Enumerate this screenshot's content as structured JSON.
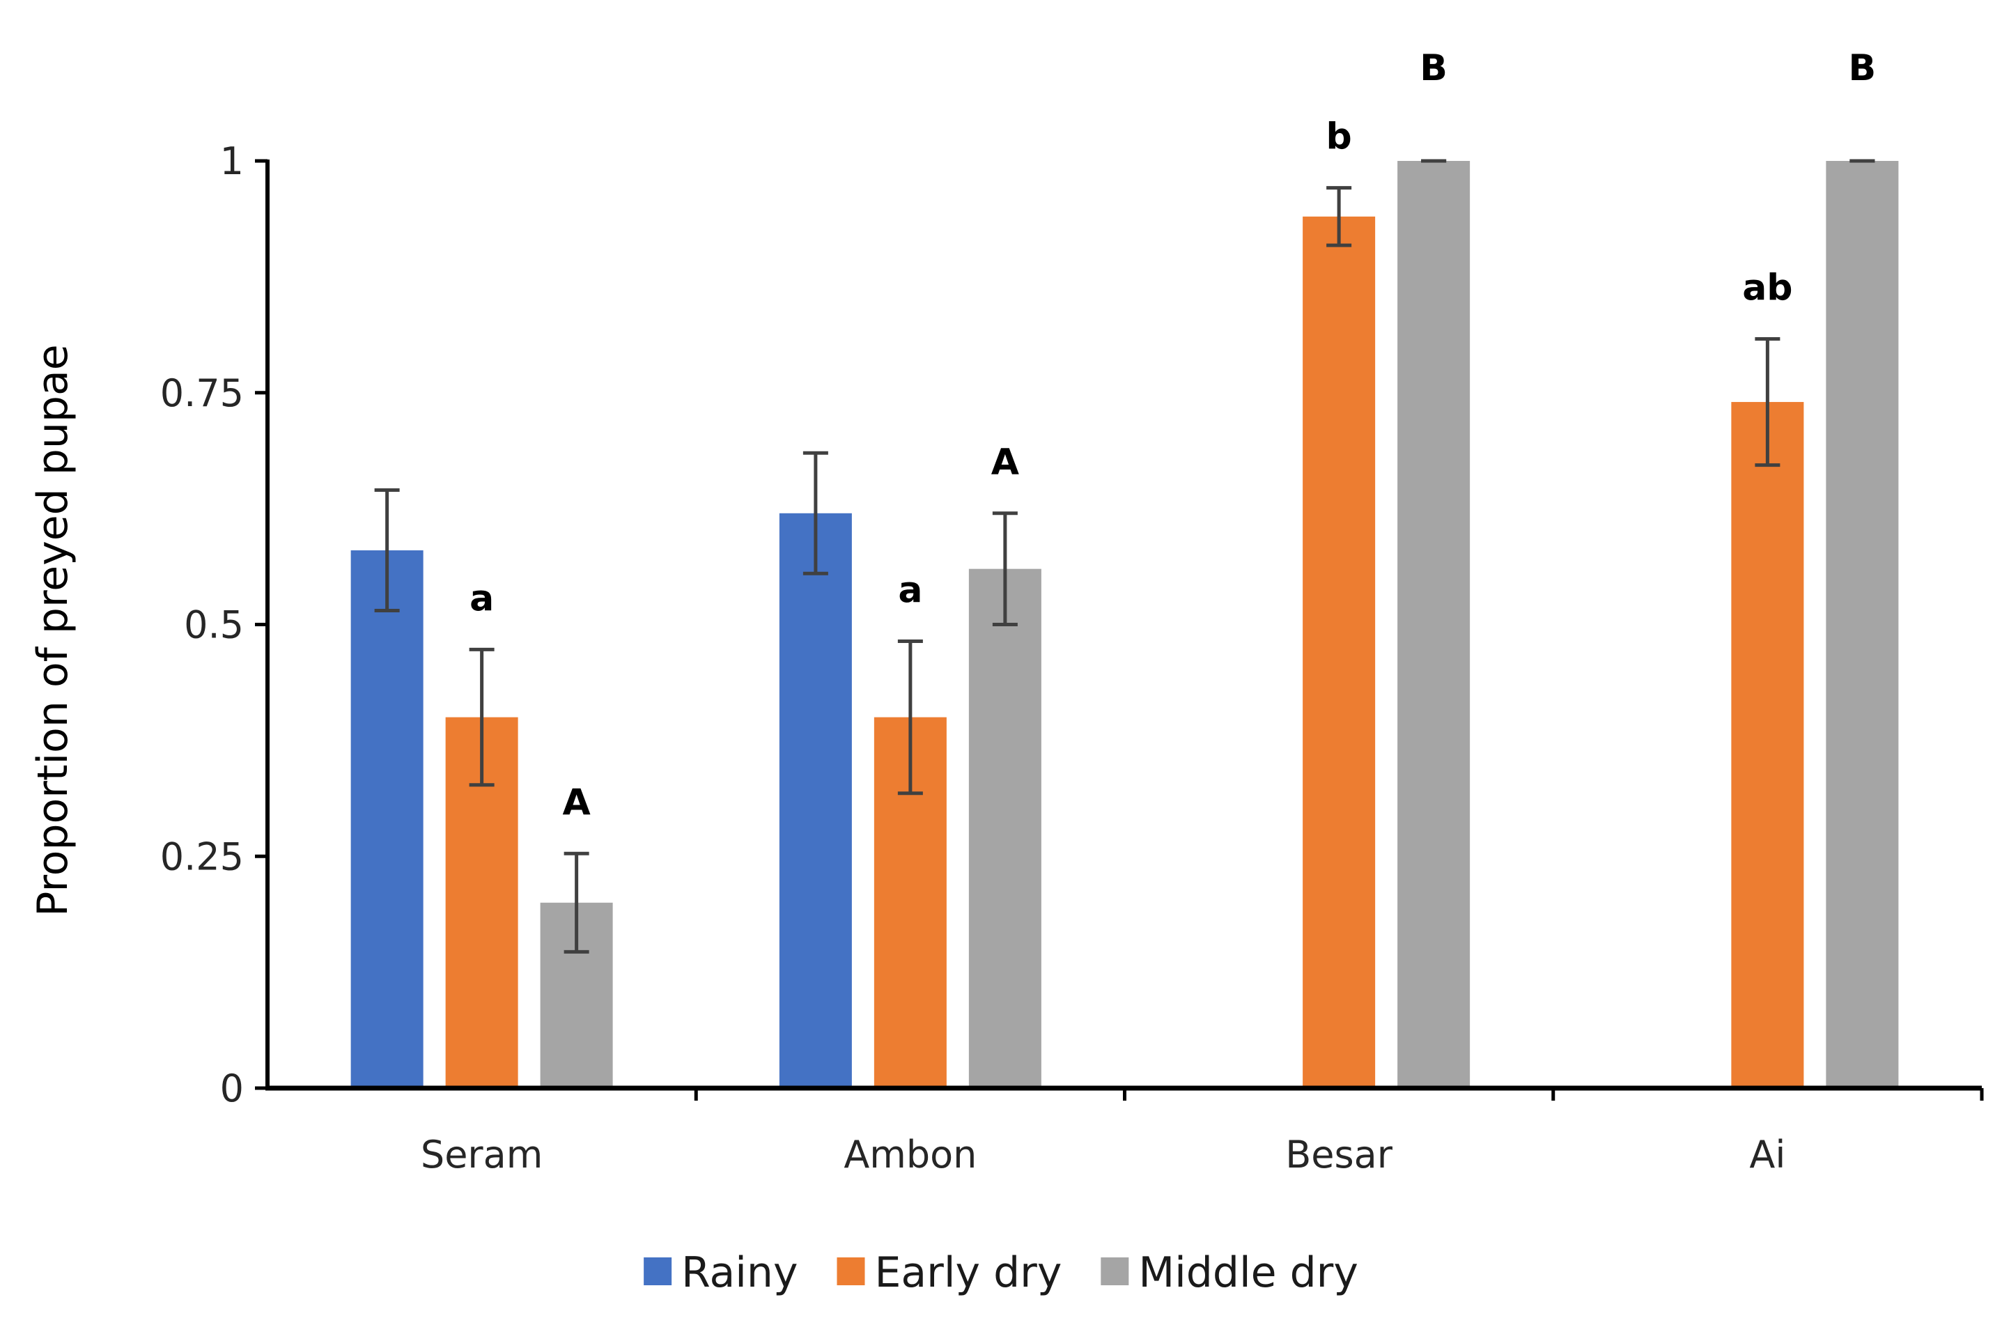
{
  "chart_data": {
    "type": "bar",
    "title": "",
    "xlabel": "",
    "ylabel": "Proportion of preyed pupae",
    "ylim": [
      0,
      1
    ],
    "yticks": [
      0,
      0.25,
      0.5,
      0.75,
      1
    ],
    "ytick_labels": [
      "0",
      "0.25",
      "0.5",
      "0.75",
      "1"
    ],
    "grid": false,
    "legend_position": "bottom-center",
    "categories": [
      "Seram",
      "Ambon",
      "Besar",
      "Ai"
    ],
    "series": [
      {
        "name": "Rainy",
        "color": "#4472C4",
        "values": [
          0.58,
          0.62,
          null,
          null
        ],
        "errors": [
          0.065,
          0.065,
          null,
          null
        ],
        "letters": [
          "",
          "",
          "",
          ""
        ]
      },
      {
        "name": "Early dry",
        "color": "#ED7D31",
        "values": [
          0.4,
          0.4,
          0.94,
          0.74
        ],
        "errors": [
          0.073,
          0.082,
          0.031,
          0.068
        ],
        "letters": [
          "a",
          "a",
          "b",
          "ab"
        ]
      },
      {
        "name": "Middle dry",
        "color": "#A5A5A5",
        "values": [
          0.2,
          0.56,
          1.0,
          1.0
        ],
        "errors": [
          0.053,
          0.06,
          0,
          0
        ],
        "letters": [
          "A",
          "A",
          "B",
          "B"
        ]
      }
    ]
  }
}
